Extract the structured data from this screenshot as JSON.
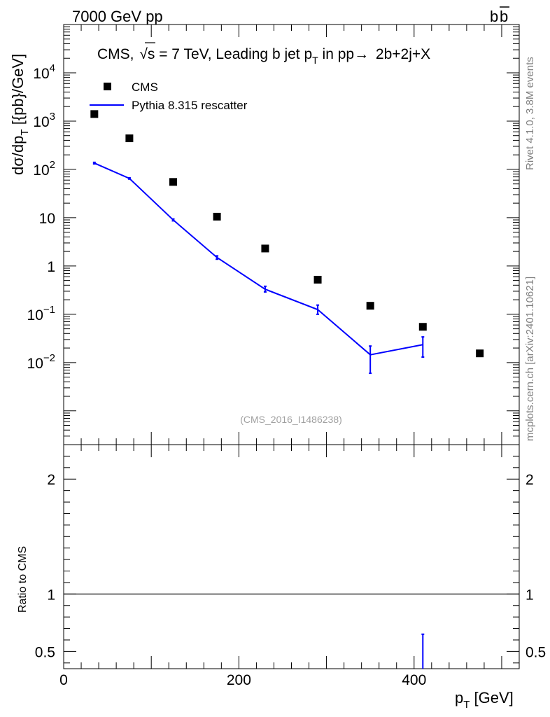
{
  "header": {
    "left": "7000 GeV pp",
    "right": "b",
    "right_bar": "b"
  },
  "side_labels": {
    "rivet": "Rivet 4.1.0,  3.8M events",
    "mcplots": "mcplots.cern.ch [arXiv:2401.10621]"
  },
  "chart_data": {
    "type": "scatter",
    "title": "CMS, √s = 7 TeV, Leading b jet p_T in pp→ 2b+2j+X",
    "title_parts": {
      "a": "CMS, ",
      "sqrt": "√",
      "s": "s",
      "b": " = 7 TeV, Leading b jet p",
      "sub": "T",
      "c": " in pp",
      "arrow": "→",
      "d": " 2b+2j+X"
    },
    "watermark": "(CMS_2016_I1486238)",
    "ylabel": {
      "main": "dσ/dp",
      "sub": "T",
      "units": " [{pb}/GeV]"
    },
    "xlabel": {
      "main": "p",
      "sub": "T",
      "units": " [GeV]"
    },
    "ratio_ylabel": "Ratio to CMS",
    "xlim": [
      0,
      520
    ],
    "ylim_log": [
      0.0002,
      100000
    ],
    "ratio_ylim": [
      0.35,
      2.3
    ],
    "x_ticks": [
      0,
      200,
      400
    ],
    "y_ticks": [
      {
        "v": 0.01,
        "base": "10",
        "exp": "−2"
      },
      {
        "v": 0.1,
        "base": "10",
        "exp": "−1"
      },
      {
        "v": 1,
        "base": "1",
        "exp": ""
      },
      {
        "v": 10,
        "base": "10",
        "exp": ""
      },
      {
        "v": 100,
        "base": "10",
        "exp": "2"
      },
      {
        "v": 1000,
        "base": "10",
        "exp": "3"
      },
      {
        "v": 10000,
        "base": "10",
        "exp": "4"
      }
    ],
    "ratio_ticks": [
      0.5,
      1,
      2
    ],
    "legend": [
      {
        "name": "CMS",
        "style": "marker"
      },
      {
        "name": "Pythia 8.315 rescatter",
        "style": "line",
        "color": "#0000ff"
      }
    ],
    "series": [
      {
        "name": "CMS",
        "color": "#000000",
        "x": [
          35,
          75,
          125,
          175,
          230,
          290,
          350,
          410,
          475
        ],
        "y": [
          1400,
          440,
          55,
          10.5,
          2.3,
          0.52,
          0.15,
          0.055,
          0.0155
        ]
      },
      {
        "name": "Pythia 8.315 rescatter",
        "color": "#0000ff",
        "x": [
          35,
          75,
          125,
          175,
          230,
          290,
          350,
          410
        ],
        "y": [
          135,
          65,
          9,
          1.5,
          0.33,
          0.125,
          0.0145,
          0.0235
        ],
        "err_lo": [
          130,
          63,
          8.6,
          1.38,
          0.29,
          0.1,
          0.006,
          0.013
        ],
        "err_hi": [
          140,
          67,
          9.4,
          1.62,
          0.38,
          0.155,
          0.022,
          0.034
        ]
      }
    ],
    "ratio_series": {
      "name": "Pythia 8.315 rescatter",
      "x": [
        410
      ],
      "lo": [
        0.35
      ],
      "hi": [
        0.65
      ]
    }
  }
}
